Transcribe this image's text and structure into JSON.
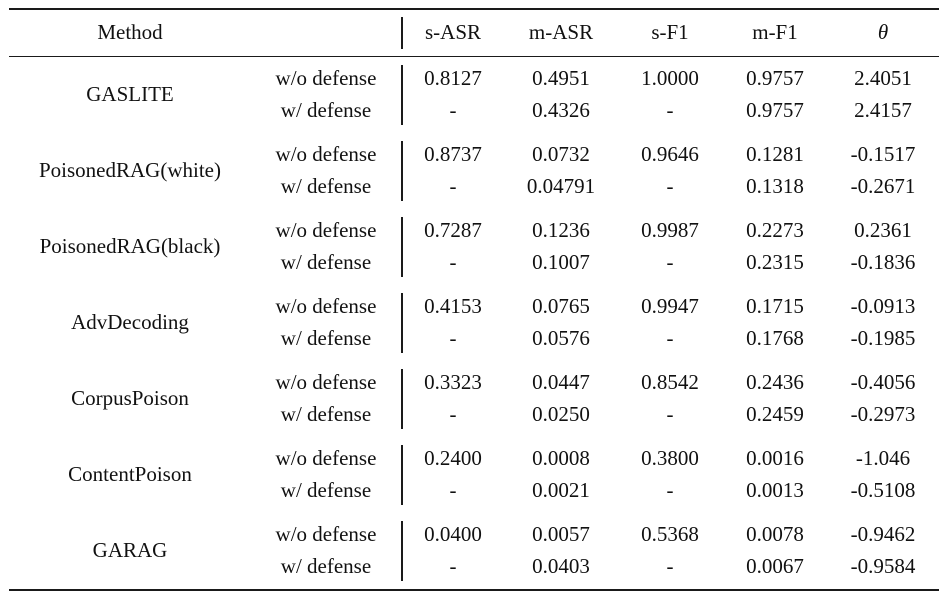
{
  "header": {
    "method": "Method",
    "s_asr": "s-ASR",
    "m_asr": "m-ASR",
    "s_f1": "s-F1",
    "m_f1": "m-F1",
    "theta": "θ"
  },
  "rows": [
    {
      "method": "GASLITE",
      "without": {
        "label": "w/o defense",
        "s_asr": "0.8127",
        "m_asr": "0.4951",
        "s_f1": "1.0000",
        "m_f1": "0.9757",
        "theta": "2.4051"
      },
      "with": {
        "label": "w/ defense",
        "s_asr": "-",
        "m_asr": "0.4326",
        "s_f1": "-",
        "m_f1": "0.9757",
        "theta": "2.4157"
      }
    },
    {
      "method": "PoisonedRAG(white)",
      "without": {
        "label": "w/o defense",
        "s_asr": "0.8737",
        "m_asr": "0.0732",
        "s_f1": "0.9646",
        "m_f1": "0.1281",
        "theta": "-0.1517"
      },
      "with": {
        "label": "w/ defense",
        "s_asr": "-",
        "m_asr": "0.04791",
        "s_f1": "-",
        "m_f1": "0.1318",
        "theta": "-0.2671"
      }
    },
    {
      "method": "PoisonedRAG(black)",
      "without": {
        "label": "w/o defense",
        "s_asr": "0.7287",
        "m_asr": "0.1236",
        "s_f1": "0.9987",
        "m_f1": "0.2273",
        "theta": "0.2361"
      },
      "with": {
        "label": "w/ defense",
        "s_asr": "-",
        "m_asr": "0.1007",
        "s_f1": "-",
        "m_f1": "0.2315",
        "theta": "-0.1836"
      }
    },
    {
      "method": "AdvDecoding",
      "without": {
        "label": "w/o defense",
        "s_asr": "0.4153",
        "m_asr": "0.0765",
        "s_f1": "0.9947",
        "m_f1": "0.1715",
        "theta": "-0.0913"
      },
      "with": {
        "label": "w/ defense",
        "s_asr": "-",
        "m_asr": "0.0576",
        "s_f1": "-",
        "m_f1": "0.1768",
        "theta": "-0.1985"
      }
    },
    {
      "method": "CorpusPoison",
      "without": {
        "label": "w/o defense",
        "s_asr": "0.3323",
        "m_asr": "0.0447",
        "s_f1": "0.8542",
        "m_f1": "0.2436",
        "theta": "-0.4056"
      },
      "with": {
        "label": "w/ defense",
        "s_asr": "-",
        "m_asr": "0.0250",
        "s_f1": "-",
        "m_f1": "0.2459",
        "theta": "-0.2973"
      }
    },
    {
      "method": "ContentPoison",
      "without": {
        "label": "w/o defense",
        "s_asr": "0.2400",
        "m_asr": "0.0008",
        "s_f1": "0.3800",
        "m_f1": "0.0016",
        "theta": "-1.046"
      },
      "with": {
        "label": "w/ defense",
        "s_asr": "-",
        "m_asr": "0.0021",
        "s_f1": "-",
        "m_f1": "0.0013",
        "theta": "-0.5108"
      }
    },
    {
      "method": "GARAG",
      "without": {
        "label": "w/o defense",
        "s_asr": "0.0400",
        "m_asr": "0.0057",
        "s_f1": "0.5368",
        "m_f1": "0.0078",
        "theta": "-0.9462"
      },
      "with": {
        "label": "w/ defense",
        "s_asr": "-",
        "m_asr": "0.0403",
        "s_f1": "-",
        "m_f1": "0.0067",
        "theta": "-0.9584"
      }
    }
  ]
}
